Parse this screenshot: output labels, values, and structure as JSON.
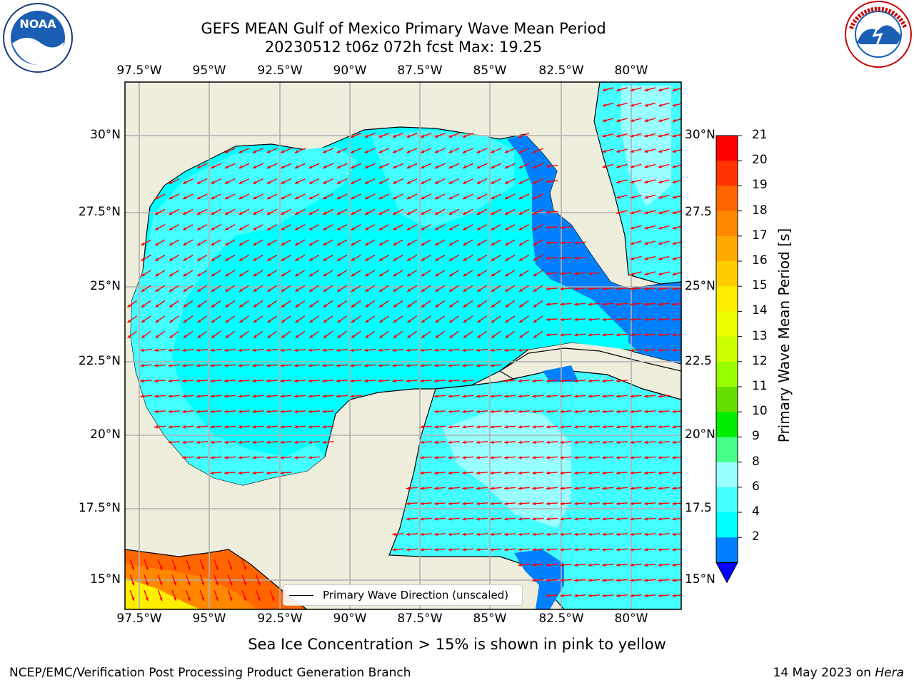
{
  "title_line1": "GEFS MEAN Gulf of Mexico Primary Wave Mean Period",
  "title_line2": "20230512 t06z 072h fcst   Max: 19.25",
  "logos": {
    "left": "noaa-logo",
    "right": "nws-logo"
  },
  "map": {
    "lon_labels": [
      "97.5°W",
      "95°W",
      "92.5°W",
      "90°W",
      "87.5°W",
      "85°W",
      "82.5°W",
      "80°W"
    ],
    "lat_labels": [
      "30°N",
      "27.5°N",
      "25°N",
      "22.5°N",
      "20°N",
      "17.5°N",
      "15°N"
    ],
    "lat_labels_right": [
      "30°N",
      "27.5",
      "25°N",
      "22.5",
      "20°N",
      "17.5",
      "15°N"
    ],
    "colors": {
      "land": "#efeddc",
      "water_main": "#00ffff",
      "water_light": "#44ffff",
      "water_pale": "#99ffff",
      "water_deep": "#0080ff",
      "arrow": "#ff0000"
    }
  },
  "colorbar": {
    "label": "Primary Wave Mean Period [s]",
    "ticks": [
      "21",
      "20",
      "19",
      "18",
      "17",
      "16",
      "15",
      "14",
      "13",
      "12",
      "11",
      "10",
      "9",
      "8",
      "6",
      "4",
      "2"
    ],
    "colors": [
      "#ff0000",
      "#ff3300",
      "#ff6600",
      "#ff8800",
      "#ffaa00",
      "#ffcc00",
      "#ffee00",
      "#eeff00",
      "#ccff00",
      "#99ff00",
      "#66dd00",
      "#00ee00",
      "#44ff88",
      "#99ffff",
      "#44ffff",
      "#00ffff",
      "#0080ff"
    ],
    "extend_color": "#0000ff"
  },
  "legend_label": "Primary Wave Direction (unscaled)",
  "note": "Sea Ice Concentration > 15% is shown in pink to yellow",
  "footer_left": "NCEP/EMC/Verification Post Processing Product Generation Branch",
  "footer_right_date": "14 May 2023 on ",
  "footer_right_machine": "Hera"
}
